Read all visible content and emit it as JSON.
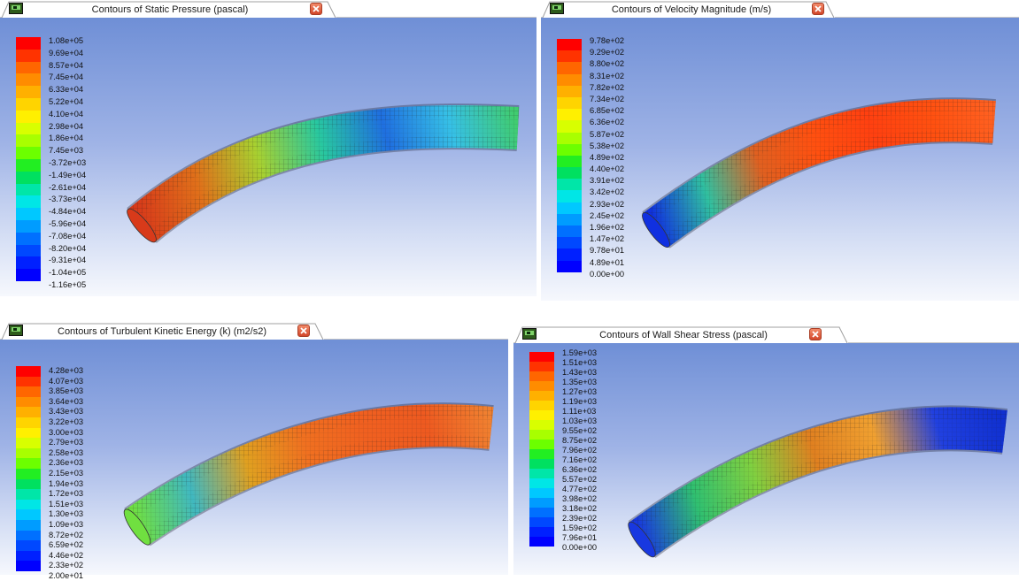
{
  "colormap": [
    "#ff0000",
    "#ff3300",
    "#ff6600",
    "#ff8c00",
    "#ffb000",
    "#ffd400",
    "#fff000",
    "#d8ff00",
    "#a8ff00",
    "#6cff00",
    "#22ee22",
    "#00e060",
    "#00e6a8",
    "#00e6e6",
    "#00c8ff",
    "#009cff",
    "#0070ff",
    "#0048ff",
    "#0020ff",
    "#0000ff"
  ],
  "panels": [
    {
      "title": "Contours of Static Pressure (pascal)",
      "labels": [
        "1.08e+05",
        "9.69e+04",
        "8.57e+04",
        "7.45e+04",
        "6.33e+04",
        "5.22e+04",
        "4.10e+04",
        "2.98e+04",
        "1.86e+04",
        "7.45e+03",
        "-3.72e+03",
        "-1.49e+04",
        "-2.61e+04",
        "-3.73e+04",
        "-4.84e+04",
        "-5.96e+04",
        "-7.08e+04",
        "-8.20e+04",
        "-9.31e+04",
        "-1.04e+05",
        "-1.16e+05"
      ],
      "pipe_colors": [
        "#d83a1a",
        "#e0701a",
        "#a8d030",
        "#28c8a0",
        "#1f6fe0",
        "#36c0e6",
        "#40cc70"
      ]
    },
    {
      "title": "Contours of Velocity Magnitude (m/s)",
      "labels": [
        "9.78e+02",
        "9.29e+02",
        "8.80e+02",
        "8.31e+02",
        "7.82e+02",
        "7.34e+02",
        "6.85e+02",
        "6.36e+02",
        "5.87e+02",
        "5.38e+02",
        "4.89e+02",
        "4.40e+02",
        "3.91e+02",
        "3.42e+02",
        "2.93e+02",
        "2.45e+02",
        "1.96e+02",
        "1.47e+02",
        "9.78e+01",
        "4.89e+01",
        "0.00e+00"
      ],
      "pipe_colors": [
        "#1030e0",
        "#30c0a0",
        "#e06020",
        "#ff5010",
        "#ff4010",
        "#ff5010",
        "#ff6020"
      ]
    },
    {
      "title": "Contours of Turbulent Kinetic Energy (k) (m2/s2)",
      "labels": [
        "4.28e+03",
        "4.07e+03",
        "3.85e+03",
        "3.64e+03",
        "3.43e+03",
        "3.22e+03",
        "3.00e+03",
        "2.79e+03",
        "2.58e+03",
        "2.36e+03",
        "2.15e+03",
        "1.94e+03",
        "1.72e+03",
        "1.51e+03",
        "1.30e+03",
        "1.09e+03",
        "8.72e+02",
        "6.59e+02",
        "4.46e+02",
        "2.33e+02",
        "2.00e+01"
      ],
      "pipe_colors": [
        "#70e040",
        "#40b8c0",
        "#e0a020",
        "#f07020",
        "#f06020",
        "#ee5a20",
        "#f08030"
      ]
    },
    {
      "title": "Contours of Wall Shear Stress (pascal)",
      "labels": [
        "1.59e+03",
        "1.51e+03",
        "1.43e+03",
        "1.35e+03",
        "1.27e+03",
        "1.19e+03",
        "1.11e+03",
        "1.03e+03",
        "9.55e+02",
        "8.75e+02",
        "7.96e+02",
        "7.16e+02",
        "6.36e+02",
        "5.57e+02",
        "4.77e+02",
        "3.98e+02",
        "3.18e+02",
        "2.39e+02",
        "1.59e+02",
        "7.96e+01",
        "0.00e+00"
      ],
      "pipe_colors": [
        "#1838e0",
        "#30c070",
        "#80d040",
        "#e08020",
        "#f0a030",
        "#2040e0",
        "#1030d0"
      ]
    }
  ]
}
